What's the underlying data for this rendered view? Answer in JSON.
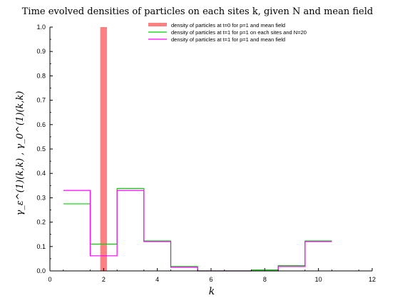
{
  "chart_data": {
    "type": "bar",
    "title": "Time evolved densities of particles on each sites k, given N and mean field",
    "xlabel": "k",
    "ylabel": "γ_ε^(1)(k,k) , γ_0^(1)(k,k)",
    "xlim": [
      0,
      12
    ],
    "ylim": [
      0,
      1.0
    ],
    "xticks": [
      0,
      2,
      4,
      6,
      8,
      10,
      12
    ],
    "yticks": [
      0.0,
      0.1,
      0.2,
      0.3,
      0.4,
      0.5,
      0.6,
      0.7,
      0.8,
      0.9,
      1.0
    ],
    "grid": false,
    "legend_position": "top-right",
    "bar_series": {
      "name": "density of particles at t=0 for p=1 and mean field",
      "color": "#ff8080",
      "x": [
        2
      ],
      "values": [
        1.0
      ],
      "width": 0.25
    },
    "series": [
      {
        "name": "density of particles at t=1 for p=1 on each sites and N=20",
        "color": "#00d400",
        "x": [
          1,
          2,
          3,
          4,
          5,
          6,
          7,
          8,
          9,
          10
        ],
        "values": [
          0.275,
          0.11,
          0.338,
          0.123,
          0.018,
          0.0,
          0.0,
          0.004,
          0.022,
          0.123
        ]
      },
      {
        "name": "density of particles at t=1 for p=1 and mean field",
        "color": "#ff00ff",
        "x": [
          1,
          2,
          3,
          4,
          5,
          6,
          7,
          8,
          9,
          10
        ],
        "values": [
          0.33,
          0.062,
          0.33,
          0.12,
          0.015,
          0.0,
          0.0,
          0.0,
          0.018,
          0.12
        ]
      }
    ]
  }
}
